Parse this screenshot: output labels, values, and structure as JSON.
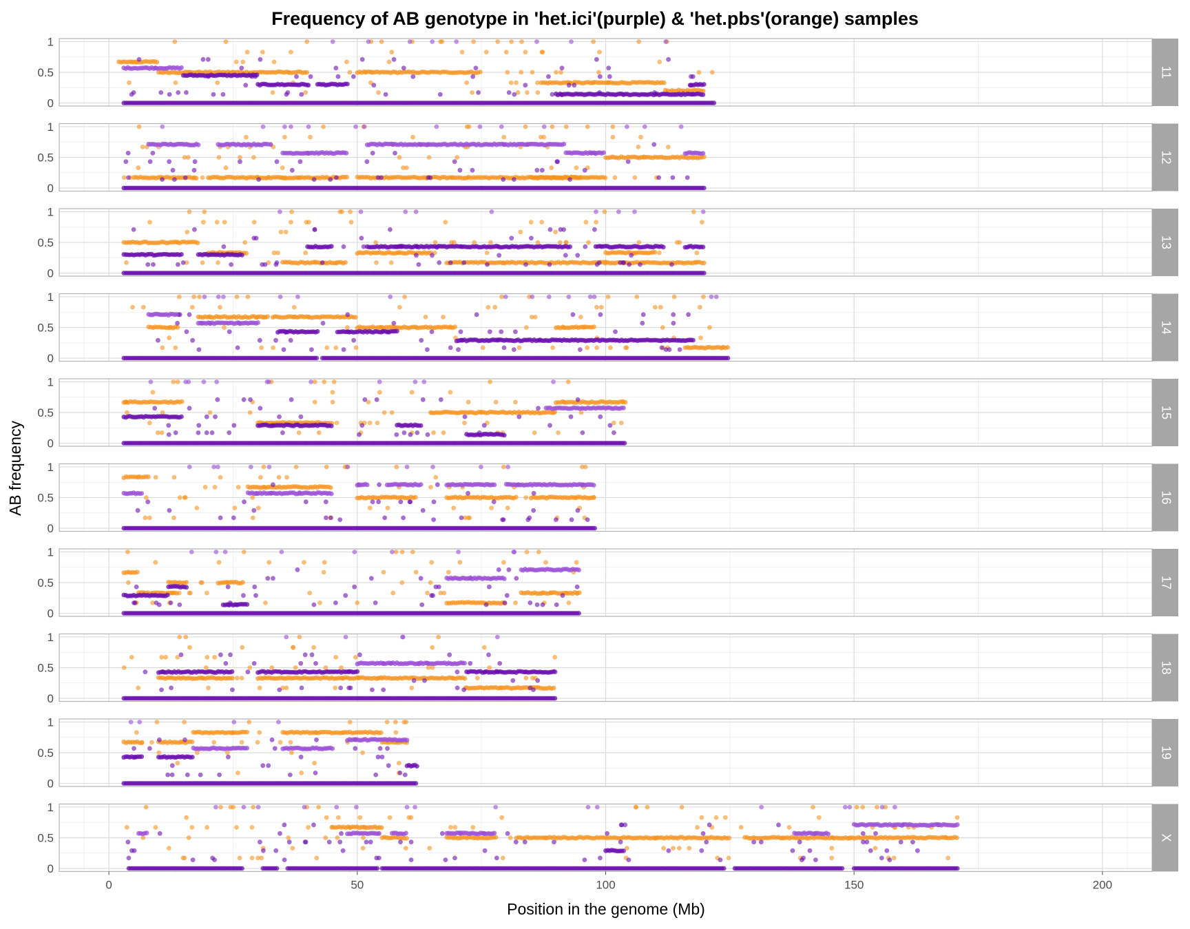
{
  "chart_data": {
    "type": "scatter",
    "title": "Frequency of AB genotype in 'het.ici'(purple) & 'het.pbs'(orange) samples",
    "xlabel": "Position in the genome (Mb)",
    "ylabel": "AB frequency",
    "xlim": [
      -10,
      210
    ],
    "ylim": [
      -0.05,
      1.05
    ],
    "x_ticks": [
      0,
      50,
      100,
      150,
      200
    ],
    "y_ticks": [
      0,
      0.5,
      1
    ],
    "y_tick_labels": [
      "0",
      "0.5",
      "1"
    ],
    "grid": true,
    "facet_by": "chromosome",
    "colors": {
      "het.ici": "#6a0dad",
      "het.ici_light": "#9b4fd6",
      "het.pbs": "#f7931e",
      "panel_border": "#b3b3b3",
      "grid": "#dcdcdc",
      "strip": "#a6a6a6"
    },
    "panels": [
      {
        "label": "11",
        "xmax": 122,
        "pbs": [
          [
            2,
            10,
            0.67
          ],
          [
            10,
            25,
            0.5
          ],
          [
            25,
            40,
            0.5
          ],
          [
            50,
            75,
            0.5
          ],
          [
            87,
            112,
            0.33
          ],
          [
            112,
            120,
            0.2
          ]
        ],
        "ici": [
          [
            3,
            122,
            0.0
          ],
          [
            3,
            15,
            0.57
          ],
          [
            15,
            30,
            0.45
          ],
          [
            30,
            40,
            0.3
          ],
          [
            42,
            48,
            0.3
          ],
          [
            90,
            120,
            0.14
          ],
          [
            117,
            120,
            0.3
          ]
        ]
      },
      {
        "label": "12",
        "xmax": 120,
        "pbs": [
          [
            5,
            18,
            0.17
          ],
          [
            20,
            48,
            0.17
          ],
          [
            50,
            72,
            0.17
          ],
          [
            72,
            100,
            0.17
          ],
          [
            100,
            120,
            0.5
          ],
          [
            85,
            95,
            0.17
          ]
        ],
        "ici": [
          [
            3,
            120,
            0.0
          ],
          [
            8,
            18,
            0.71
          ],
          [
            22,
            32,
            0.71
          ],
          [
            35,
            48,
            0.57
          ],
          [
            52,
            72,
            0.71
          ],
          [
            72,
            92,
            0.71
          ],
          [
            92,
            100,
            0.57
          ],
          [
            116,
            120,
            0.57
          ]
        ]
      },
      {
        "label": "13",
        "xmax": 120,
        "pbs": [
          [
            3,
            18,
            0.5
          ],
          [
            20,
            28,
            0.33
          ],
          [
            35,
            48,
            0.17
          ],
          [
            50,
            65,
            0.33
          ],
          [
            68,
            100,
            0.17
          ],
          [
            100,
            120,
            0.17
          ],
          [
            100,
            110,
            0.33
          ]
        ],
        "ici": [
          [
            3,
            120,
            0.0
          ],
          [
            3,
            15,
            0.3
          ],
          [
            18,
            27,
            0.3
          ],
          [
            40,
            45,
            0.43
          ],
          [
            52,
            62,
            0.43
          ],
          [
            62,
            93,
            0.43
          ],
          [
            98,
            112,
            0.43
          ],
          [
            116,
            120,
            0.43
          ]
        ]
      },
      {
        "label": "14",
        "xmax": 125,
        "pbs": [
          [
            8,
            14,
            0.5
          ],
          [
            18,
            32,
            0.67
          ],
          [
            33,
            50,
            0.67
          ],
          [
            50,
            62,
            0.5
          ],
          [
            62,
            70,
            0.5
          ],
          [
            90,
            98,
            0.5
          ],
          [
            116,
            125,
            0.17
          ]
        ],
        "ici": [
          [
            3,
            42,
            0.0
          ],
          [
            43,
            125,
            0.0
          ],
          [
            8,
            14,
            0.71
          ],
          [
            18,
            30,
            0.57
          ],
          [
            34,
            42,
            0.43
          ],
          [
            46,
            58,
            0.43
          ],
          [
            70,
            100,
            0.29
          ],
          [
            100,
            118,
            0.29
          ]
        ]
      },
      {
        "label": "15",
        "xmax": 104,
        "pbs": [
          [
            3,
            15,
            0.67
          ],
          [
            30,
            45,
            0.33
          ],
          [
            65,
            90,
            0.5
          ],
          [
            90,
            104,
            0.67
          ]
        ],
        "ici": [
          [
            3,
            104,
            0.0
          ],
          [
            3,
            15,
            0.43
          ],
          [
            30,
            45,
            0.29
          ],
          [
            58,
            63,
            0.29
          ],
          [
            72,
            80,
            0.14
          ],
          [
            88,
            104,
            0.57
          ]
        ]
      },
      {
        "label": "16",
        "xmax": 98,
        "pbs": [
          [
            3,
            8,
            0.83
          ],
          [
            28,
            45,
            0.67
          ],
          [
            50,
            62,
            0.5
          ],
          [
            68,
            82,
            0.5
          ],
          [
            85,
            98,
            0.5
          ]
        ],
        "ici": [
          [
            3,
            98,
            0.0
          ],
          [
            3,
            7,
            0.57
          ],
          [
            28,
            45,
            0.57
          ],
          [
            50,
            52,
            0.71
          ],
          [
            56,
            63,
            0.71
          ],
          [
            68,
            78,
            0.71
          ],
          [
            80,
            92,
            0.71
          ],
          [
            92,
            98,
            0.71
          ]
        ]
      },
      {
        "label": "17",
        "xmax": 95,
        "pbs": [
          [
            3,
            6,
            0.67
          ],
          [
            6,
            14,
            0.33
          ],
          [
            12,
            16,
            0.5
          ],
          [
            22,
            27,
            0.5
          ],
          [
            68,
            80,
            0.17
          ],
          [
            83,
            95,
            0.33
          ]
        ],
        "ici": [
          [
            3,
            95,
            0.0
          ],
          [
            3,
            12,
            0.29
          ],
          [
            12,
            16,
            0.43
          ],
          [
            23,
            28,
            0.14
          ],
          [
            68,
            80,
            0.57
          ],
          [
            83,
            95,
            0.71
          ]
        ]
      },
      {
        "label": "18",
        "xmax": 90,
        "pbs": [
          [
            10,
            25,
            0.33
          ],
          [
            30,
            55,
            0.33
          ],
          [
            55,
            72,
            0.33
          ],
          [
            72,
            90,
            0.17
          ]
        ],
        "ici": [
          [
            3,
            90,
            0.0
          ],
          [
            10,
            25,
            0.43
          ],
          [
            30,
            50,
            0.43
          ],
          [
            50,
            72,
            0.57
          ],
          [
            72,
            90,
            0.43
          ]
        ]
      },
      {
        "label": "19",
        "xmax": 62,
        "pbs": [
          [
            3,
            7,
            0.67
          ],
          [
            10,
            17,
            0.67
          ],
          [
            17,
            28,
            0.83
          ],
          [
            35,
            55,
            0.83
          ],
          [
            55,
            60,
            0.67
          ]
        ],
        "ici": [
          [
            3,
            62,
            0.0
          ],
          [
            3,
            7,
            0.43
          ],
          [
            10,
            17,
            0.43
          ],
          [
            17,
            28,
            0.57
          ],
          [
            35,
            45,
            0.57
          ],
          [
            48,
            60,
            0.71
          ],
          [
            60,
            62,
            0.29
          ]
        ]
      },
      {
        "label": "X",
        "xmax": 171,
        "pbs": [
          [
            45,
            55,
            0.67
          ],
          [
            55,
            60,
            0.5
          ],
          [
            68,
            78,
            0.5
          ],
          [
            82,
            110,
            0.5
          ],
          [
            110,
            125,
            0.5
          ],
          [
            128,
            150,
            0.5
          ],
          [
            150,
            171,
            0.5
          ]
        ],
        "ici": [
          [
            4,
            27,
            0.0
          ],
          [
            31,
            34,
            0.0
          ],
          [
            36,
            54,
            0.0
          ],
          [
            55,
            124,
            0.0
          ],
          [
            126,
            148,
            0.0
          ],
          [
            150,
            171,
            0.0
          ],
          [
            6,
            8,
            0.57
          ],
          [
            48,
            54,
            0.57
          ],
          [
            57,
            60,
            0.57
          ],
          [
            68,
            78,
            0.57
          ],
          [
            100,
            104,
            0.29
          ],
          [
            138,
            145,
            0.57
          ],
          [
            150,
            171,
            0.71
          ]
        ]
      }
    ]
  }
}
